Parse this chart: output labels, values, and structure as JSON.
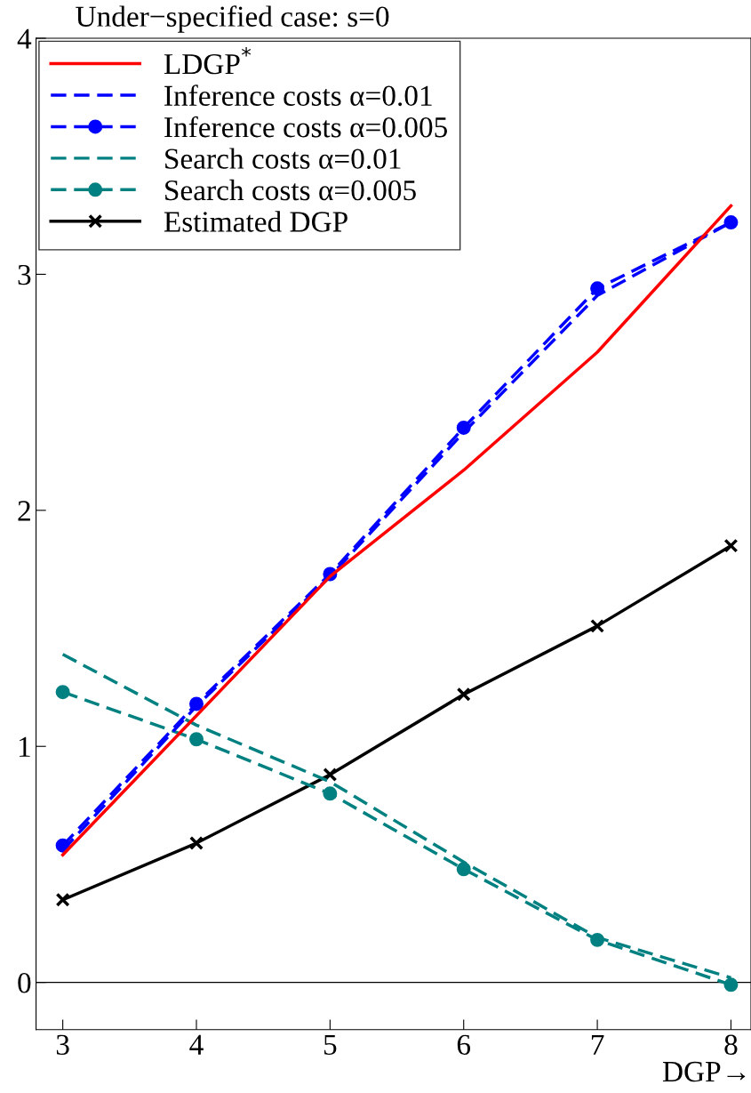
{
  "chart_data": {
    "type": "line",
    "title": "Under−specified case: s=0",
    "xlabel": "DGP→",
    "x": [
      3,
      4,
      5,
      6,
      7,
      8
    ],
    "series": [
      {
        "name": "LDGP$^{*}$",
        "color": "#ff0000",
        "line_style": "solid",
        "marker": "none",
        "values": [
          0.54,
          1.13,
          1.72,
          2.17,
          2.67,
          3.29
        ]
      },
      {
        "name": "Inference costs α=0.01",
        "color": "#0000ff",
        "line_style": "dashed",
        "marker": "none",
        "values": [
          0.56,
          1.17,
          1.72,
          2.33,
          2.91,
          3.22
        ]
      },
      {
        "name": "Inference costs α=0.005",
        "color": "#0000ff",
        "line_style": "dashed",
        "marker": "circle",
        "values": [
          0.58,
          1.18,
          1.73,
          2.35,
          2.94,
          3.22
        ]
      },
      {
        "name": "Search costs α=0.01",
        "color": "#008080",
        "line_style": "dashed",
        "marker": "none",
        "values": [
          1.39,
          1.09,
          0.85,
          0.51,
          0.19,
          0.02
        ]
      },
      {
        "name": "Search costs α=0.005",
        "color": "#008080",
        "line_style": "dashed",
        "marker": "circle",
        "values": [
          1.23,
          1.03,
          0.8,
          0.48,
          0.18,
          -0.01
        ]
      },
      {
        "name": "Estimated DGP",
        "color": "#000000",
        "line_style": "solid",
        "marker": "cross",
        "values": [
          0.35,
          0.59,
          0.88,
          1.22,
          1.51,
          1.85
        ]
      }
    ],
    "xlim": [
      2.8,
      8.15
    ],
    "ylim": [
      -0.2,
      4
    ],
    "xticks": [
      3,
      4,
      5,
      6,
      7,
      8
    ],
    "yticks": [
      0,
      1,
      2,
      3,
      4
    ],
    "ref_lines": [
      {
        "axis": "y",
        "value": 0,
        "color": "#000000"
      }
    ],
    "grid": false,
    "legend": "top left"
  }
}
